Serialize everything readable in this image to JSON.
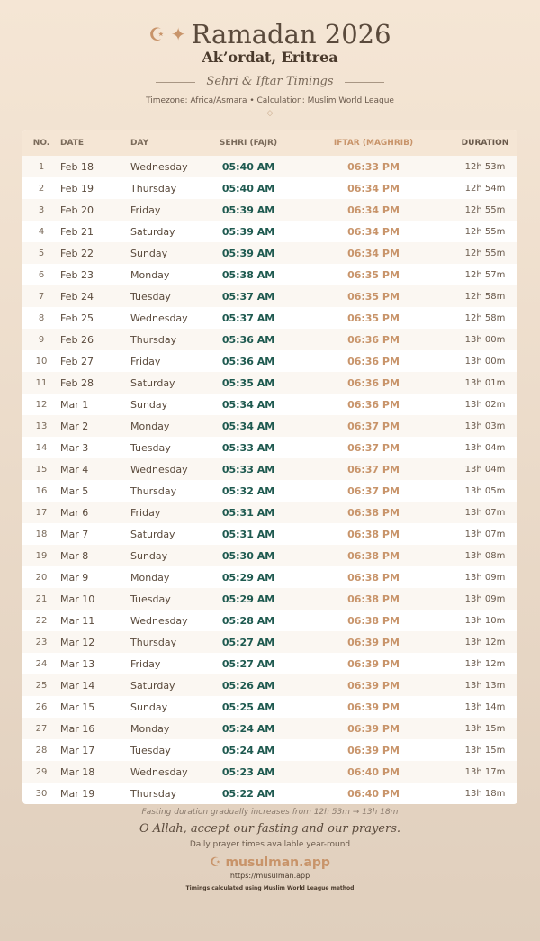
{
  "header": {
    "title": "Ramadan 2026",
    "icons": "☪ ✦",
    "city": "Ak’ordat, Eritrea",
    "subtitle": "Sehri & Iftar Timings",
    "meta": "Timezone: Africa/Asmara • Calculation: Muslim World League",
    "ornament": "◇"
  },
  "table": {
    "headers": [
      "NO.",
      "DATE",
      "DAY",
      "SEHRI (FAJR)",
      "IFTAR (MAGHRIB)",
      "DURATION"
    ],
    "rows": [
      [
        "1",
        "Feb 18",
        "Wednesday",
        "05:40 AM",
        "06:33 PM",
        "12h 53m"
      ],
      [
        "2",
        "Feb 19",
        "Thursday",
        "05:40 AM",
        "06:34 PM",
        "12h 54m"
      ],
      [
        "3",
        "Feb 20",
        "Friday",
        "05:39 AM",
        "06:34 PM",
        "12h 55m"
      ],
      [
        "4",
        "Feb 21",
        "Saturday",
        "05:39 AM",
        "06:34 PM",
        "12h 55m"
      ],
      [
        "5",
        "Feb 22",
        "Sunday",
        "05:39 AM",
        "06:34 PM",
        "12h 55m"
      ],
      [
        "6",
        "Feb 23",
        "Monday",
        "05:38 AM",
        "06:35 PM",
        "12h 57m"
      ],
      [
        "7",
        "Feb 24",
        "Tuesday",
        "05:37 AM",
        "06:35 PM",
        "12h 58m"
      ],
      [
        "8",
        "Feb 25",
        "Wednesday",
        "05:37 AM",
        "06:35 PM",
        "12h 58m"
      ],
      [
        "9",
        "Feb 26",
        "Thursday",
        "05:36 AM",
        "06:36 PM",
        "13h 00m"
      ],
      [
        "10",
        "Feb 27",
        "Friday",
        "05:36 AM",
        "06:36 PM",
        "13h 00m"
      ],
      [
        "11",
        "Feb 28",
        "Saturday",
        "05:35 AM",
        "06:36 PM",
        "13h 01m"
      ],
      [
        "12",
        "Mar 1",
        "Sunday",
        "05:34 AM",
        "06:36 PM",
        "13h 02m"
      ],
      [
        "13",
        "Mar 2",
        "Monday",
        "05:34 AM",
        "06:37 PM",
        "13h 03m"
      ],
      [
        "14",
        "Mar 3",
        "Tuesday",
        "05:33 AM",
        "06:37 PM",
        "13h 04m"
      ],
      [
        "15",
        "Mar 4",
        "Wednesday",
        "05:33 AM",
        "06:37 PM",
        "13h 04m"
      ],
      [
        "16",
        "Mar 5",
        "Thursday",
        "05:32 AM",
        "06:37 PM",
        "13h 05m"
      ],
      [
        "17",
        "Mar 6",
        "Friday",
        "05:31 AM",
        "06:38 PM",
        "13h 07m"
      ],
      [
        "18",
        "Mar 7",
        "Saturday",
        "05:31 AM",
        "06:38 PM",
        "13h 07m"
      ],
      [
        "19",
        "Mar 8",
        "Sunday",
        "05:30 AM",
        "06:38 PM",
        "13h 08m"
      ],
      [
        "20",
        "Mar 9",
        "Monday",
        "05:29 AM",
        "06:38 PM",
        "13h 09m"
      ],
      [
        "21",
        "Mar 10",
        "Tuesday",
        "05:29 AM",
        "06:38 PM",
        "13h 09m"
      ],
      [
        "22",
        "Mar 11",
        "Wednesday",
        "05:28 AM",
        "06:38 PM",
        "13h 10m"
      ],
      [
        "23",
        "Mar 12",
        "Thursday",
        "05:27 AM",
        "06:39 PM",
        "13h 12m"
      ],
      [
        "24",
        "Mar 13",
        "Friday",
        "05:27 AM",
        "06:39 PM",
        "13h 12m"
      ],
      [
        "25",
        "Mar 14",
        "Saturday",
        "05:26 AM",
        "06:39 PM",
        "13h 13m"
      ],
      [
        "26",
        "Mar 15",
        "Sunday",
        "05:25 AM",
        "06:39 PM",
        "13h 14m"
      ],
      [
        "27",
        "Mar 16",
        "Monday",
        "05:24 AM",
        "06:39 PM",
        "13h 15m"
      ],
      [
        "28",
        "Mar 17",
        "Tuesday",
        "05:24 AM",
        "06:39 PM",
        "13h 15m"
      ],
      [
        "29",
        "Mar 18",
        "Wednesday",
        "05:23 AM",
        "06:40 PM",
        "13h 17m"
      ],
      [
        "30",
        "Mar 19",
        "Thursday",
        "05:22 AM",
        "06:40 PM",
        "13h 18m"
      ]
    ]
  },
  "footer": {
    "note": "Fasting duration gradually increases from 12h 53m → 13h 18m",
    "dua": "O Allah, accept our fasting and our prayers.",
    "availability": "Daily prayer times available year-round",
    "brand": "☪ musulman.app",
    "url": "https://musulman.app",
    "calc": "Timings calculated using Muslim World League method"
  },
  "colors": {
    "sehri": "#1f5a50",
    "iftar": "#c8946a",
    "background": "#f5e6d5"
  }
}
